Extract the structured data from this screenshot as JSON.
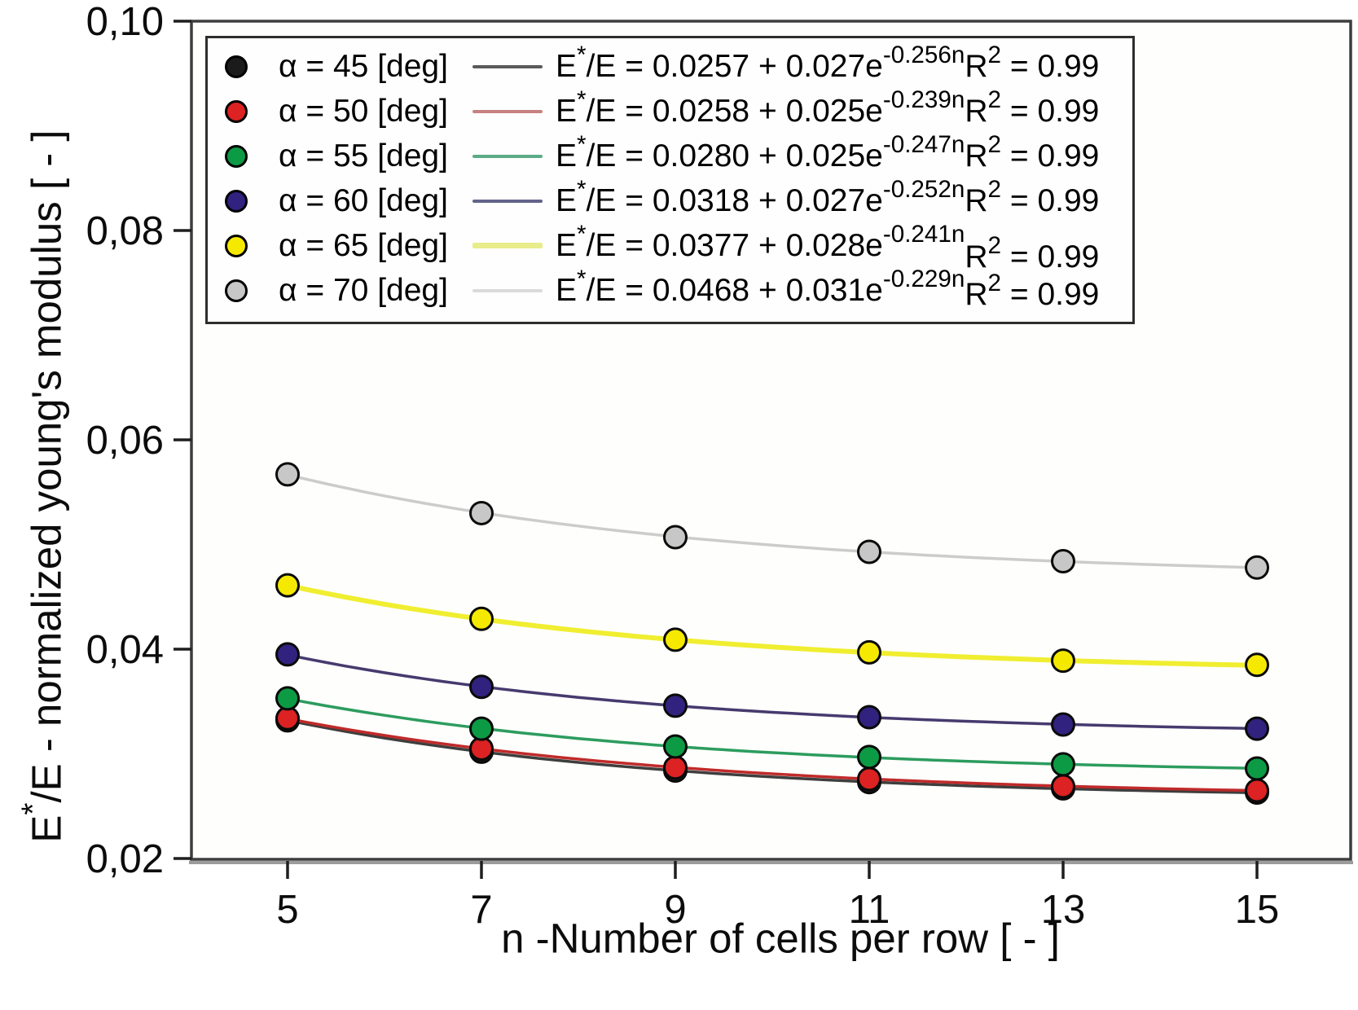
{
  "axes": {
    "y": {
      "label_tokens": [
        {
          "t": "E"
        },
        {
          "sup": "*"
        },
        {
          "t": "/E - normalized young's modulus [ - ]"
        }
      ],
      "ticks": [
        {
          "v": 0.1,
          "t": "0,10"
        },
        {
          "v": 0.08,
          "t": "0,08"
        },
        {
          "v": 0.06,
          "t": "0,06"
        },
        {
          "v": 0.04,
          "t": "0,04"
        },
        {
          "v": 0.02,
          "t": "0,02"
        }
      ]
    },
    "x": {
      "ticks": [
        {
          "v": 5,
          "t": "5"
        },
        {
          "v": 7,
          "t": "7"
        },
        {
          "v": 9,
          "t": "9"
        },
        {
          "v": 11,
          "t": "11"
        },
        {
          "v": 13,
          "t": "13"
        },
        {
          "v": 15,
          "t": "15"
        }
      ]
    }
  },
  "chart_data": {
    "type": "scatter",
    "title": "",
    "xlabel": "n -Number of cells per row [ - ]",
    "ylabel": "E*/E - normalized young's modulus [ - ]",
    "x": [
      5,
      7,
      9,
      11,
      13,
      15
    ],
    "xlim": [
      4,
      16
    ],
    "ylim": [
      0.02,
      0.1
    ],
    "grid": false,
    "legend_position": "top-left",
    "y_tick_format": "comma-decimal",
    "series": [
      {
        "name": "α = 45 [deg]",
        "alpha_deg": 45,
        "values": [
          0.0332,
          0.0302,
          0.0284,
          0.0273,
          0.0267,
          0.0263
        ],
        "fit": {
          "a": 0.0257,
          "b": 0.027,
          "c": 0.256,
          "r2": 0.99
        },
        "equation": "E*/E = 0.0257 + 0.027e^(-0.256n)  R^2 = 0.99",
        "marker_color": "#1b1b1b",
        "line_color": "#3e3e3e",
        "line_width": 3.5,
        "legend_line_color": "#5a5a5a",
        "legend_line_width": 4,
        "eq_tokens": [
          {
            "t": "E"
          },
          {
            "sup": "*"
          },
          {
            "t": "/E = 0.0257 + 0.027e"
          },
          {
            "sup": "-0.256n"
          }
        ],
        "r2_tokens": [
          {
            "t": " R"
          },
          {
            "sup": "2"
          },
          {
            "t": " = 0.99"
          }
        ],
        "r2_dy": 0
      },
      {
        "name": "α = 50 [deg]",
        "alpha_deg": 50,
        "values": [
          0.0334,
          0.0305,
          0.0287,
          0.0276,
          0.0269,
          0.0265
        ],
        "fit": {
          "a": 0.0258,
          "b": 0.025,
          "c": 0.239,
          "r2": 0.99
        },
        "equation": "E*/E = 0.0258 + 0.025e^(-0.239n)  R^2 = 0.99",
        "marker_color": "#dc2222",
        "line_color": "#c02a2a",
        "line_width": 3.5,
        "legend_line_color": "#c68181",
        "legend_line_width": 4,
        "eq_tokens": [
          {
            "t": "E"
          },
          {
            "sup": "*"
          },
          {
            "t": "/E = 0.0258 + 0.025e"
          },
          {
            "sup": "-0.239n"
          }
        ],
        "r2_tokens": [
          {
            "t": " R"
          },
          {
            "sup": "2"
          },
          {
            "t": " = 0.99"
          }
        ],
        "r2_dy": 0
      },
      {
        "name": "α = 55 [deg]",
        "alpha_deg": 55,
        "values": [
          0.0353,
          0.0324,
          0.0307,
          0.0297,
          0.029,
          0.0286
        ],
        "fit": {
          "a": 0.028,
          "b": 0.025,
          "c": 0.247,
          "r2": 0.99
        },
        "equation": "E*/E = 0.0280 + 0.025e^(-0.247n)  R^2 = 0.99",
        "marker_color": "#0d9a45",
        "line_color": "#2c9c5e",
        "line_width": 3.5,
        "legend_line_color": "#5bab87",
        "legend_line_width": 4,
        "eq_tokens": [
          {
            "t": "E"
          },
          {
            "sup": "*"
          },
          {
            "t": "/E = 0.0280 + 0.025e"
          },
          {
            "sup": "-0.247n"
          }
        ],
        "r2_tokens": [
          {
            "t": " R"
          },
          {
            "sup": "2"
          },
          {
            "t": " = 0.99"
          }
        ],
        "r2_dy": 0
      },
      {
        "name": "α = 60 [deg]",
        "alpha_deg": 60,
        "values": [
          0.0395,
          0.0364,
          0.0346,
          0.0335,
          0.0328,
          0.0324
        ],
        "fit": {
          "a": 0.0318,
          "b": 0.027,
          "c": 0.252,
          "r2": 0.99
        },
        "equation": "E*/E = 0.0318 + 0.027e^(-0.252n)  R^2 = 0.99",
        "marker_color": "#31227f",
        "line_color": "#463a6e",
        "line_width": 3.5,
        "legend_line_color": "#63638a",
        "legend_line_width": 4,
        "eq_tokens": [
          {
            "t": "E"
          },
          {
            "sup": "*"
          },
          {
            "t": "/E = 0.0318 + 0.027e"
          },
          {
            "sup": "-0.252n"
          }
        ],
        "r2_tokens": [
          {
            "t": " R"
          },
          {
            "sup": "2"
          },
          {
            "t": " = 0.99"
          }
        ],
        "r2_dy": 0
      },
      {
        "name": "α = 65 [deg]",
        "alpha_deg": 65,
        "values": [
          0.0461,
          0.0429,
          0.0409,
          0.0397,
          0.0389,
          0.0385
        ],
        "fit": {
          "a": 0.0377,
          "b": 0.028,
          "c": 0.241,
          "r2": 0.99
        },
        "equation": "E*/E = 0.0377 + 0.028e^(-0.241n)  R^2 = 0.99",
        "marker_color": "#f6e900",
        "line_color": "#f0ee30",
        "line_width": 6,
        "legend_line_color": "#e9ec8a",
        "legend_line_width": 7,
        "eq_tokens": [
          {
            "t": "E"
          },
          {
            "sup": "*"
          },
          {
            "t": "/E = 0.0377 + 0.028e"
          },
          {
            "sup": "-0.241n"
          }
        ],
        "r2_tokens": [
          {
            "t": " R"
          },
          {
            "sup": "2"
          },
          {
            "t": " = 0.99"
          }
        ],
        "r2_dy": 14
      },
      {
        "name": "α = 70 [deg]",
        "alpha_deg": 70,
        "values": [
          0.0567,
          0.053,
          0.0507,
          0.0493,
          0.0484,
          0.0478
        ],
        "fit": {
          "a": 0.0468,
          "b": 0.031,
          "c": 0.229,
          "r2": 0.99
        },
        "equation": "E*/E = 0.0468 + 0.031e^(-0.229n)  R^2 = 0.99",
        "marker_color": "#c7c7c7",
        "line_color": "#cccccc",
        "line_width": 3.5,
        "legend_line_color": "#dadada",
        "legend_line_width": 4,
        "eq_tokens": [
          {
            "t": "E"
          },
          {
            "sup": "*"
          },
          {
            "t": "/E = 0.0468 + 0.031e"
          },
          {
            "sup": "-0.229n"
          }
        ],
        "r2_tokens": [
          {
            "t": " R"
          },
          {
            "sup": "2"
          },
          {
            "t": " = 0.99"
          }
        ],
        "r2_dy": 5
      }
    ]
  }
}
